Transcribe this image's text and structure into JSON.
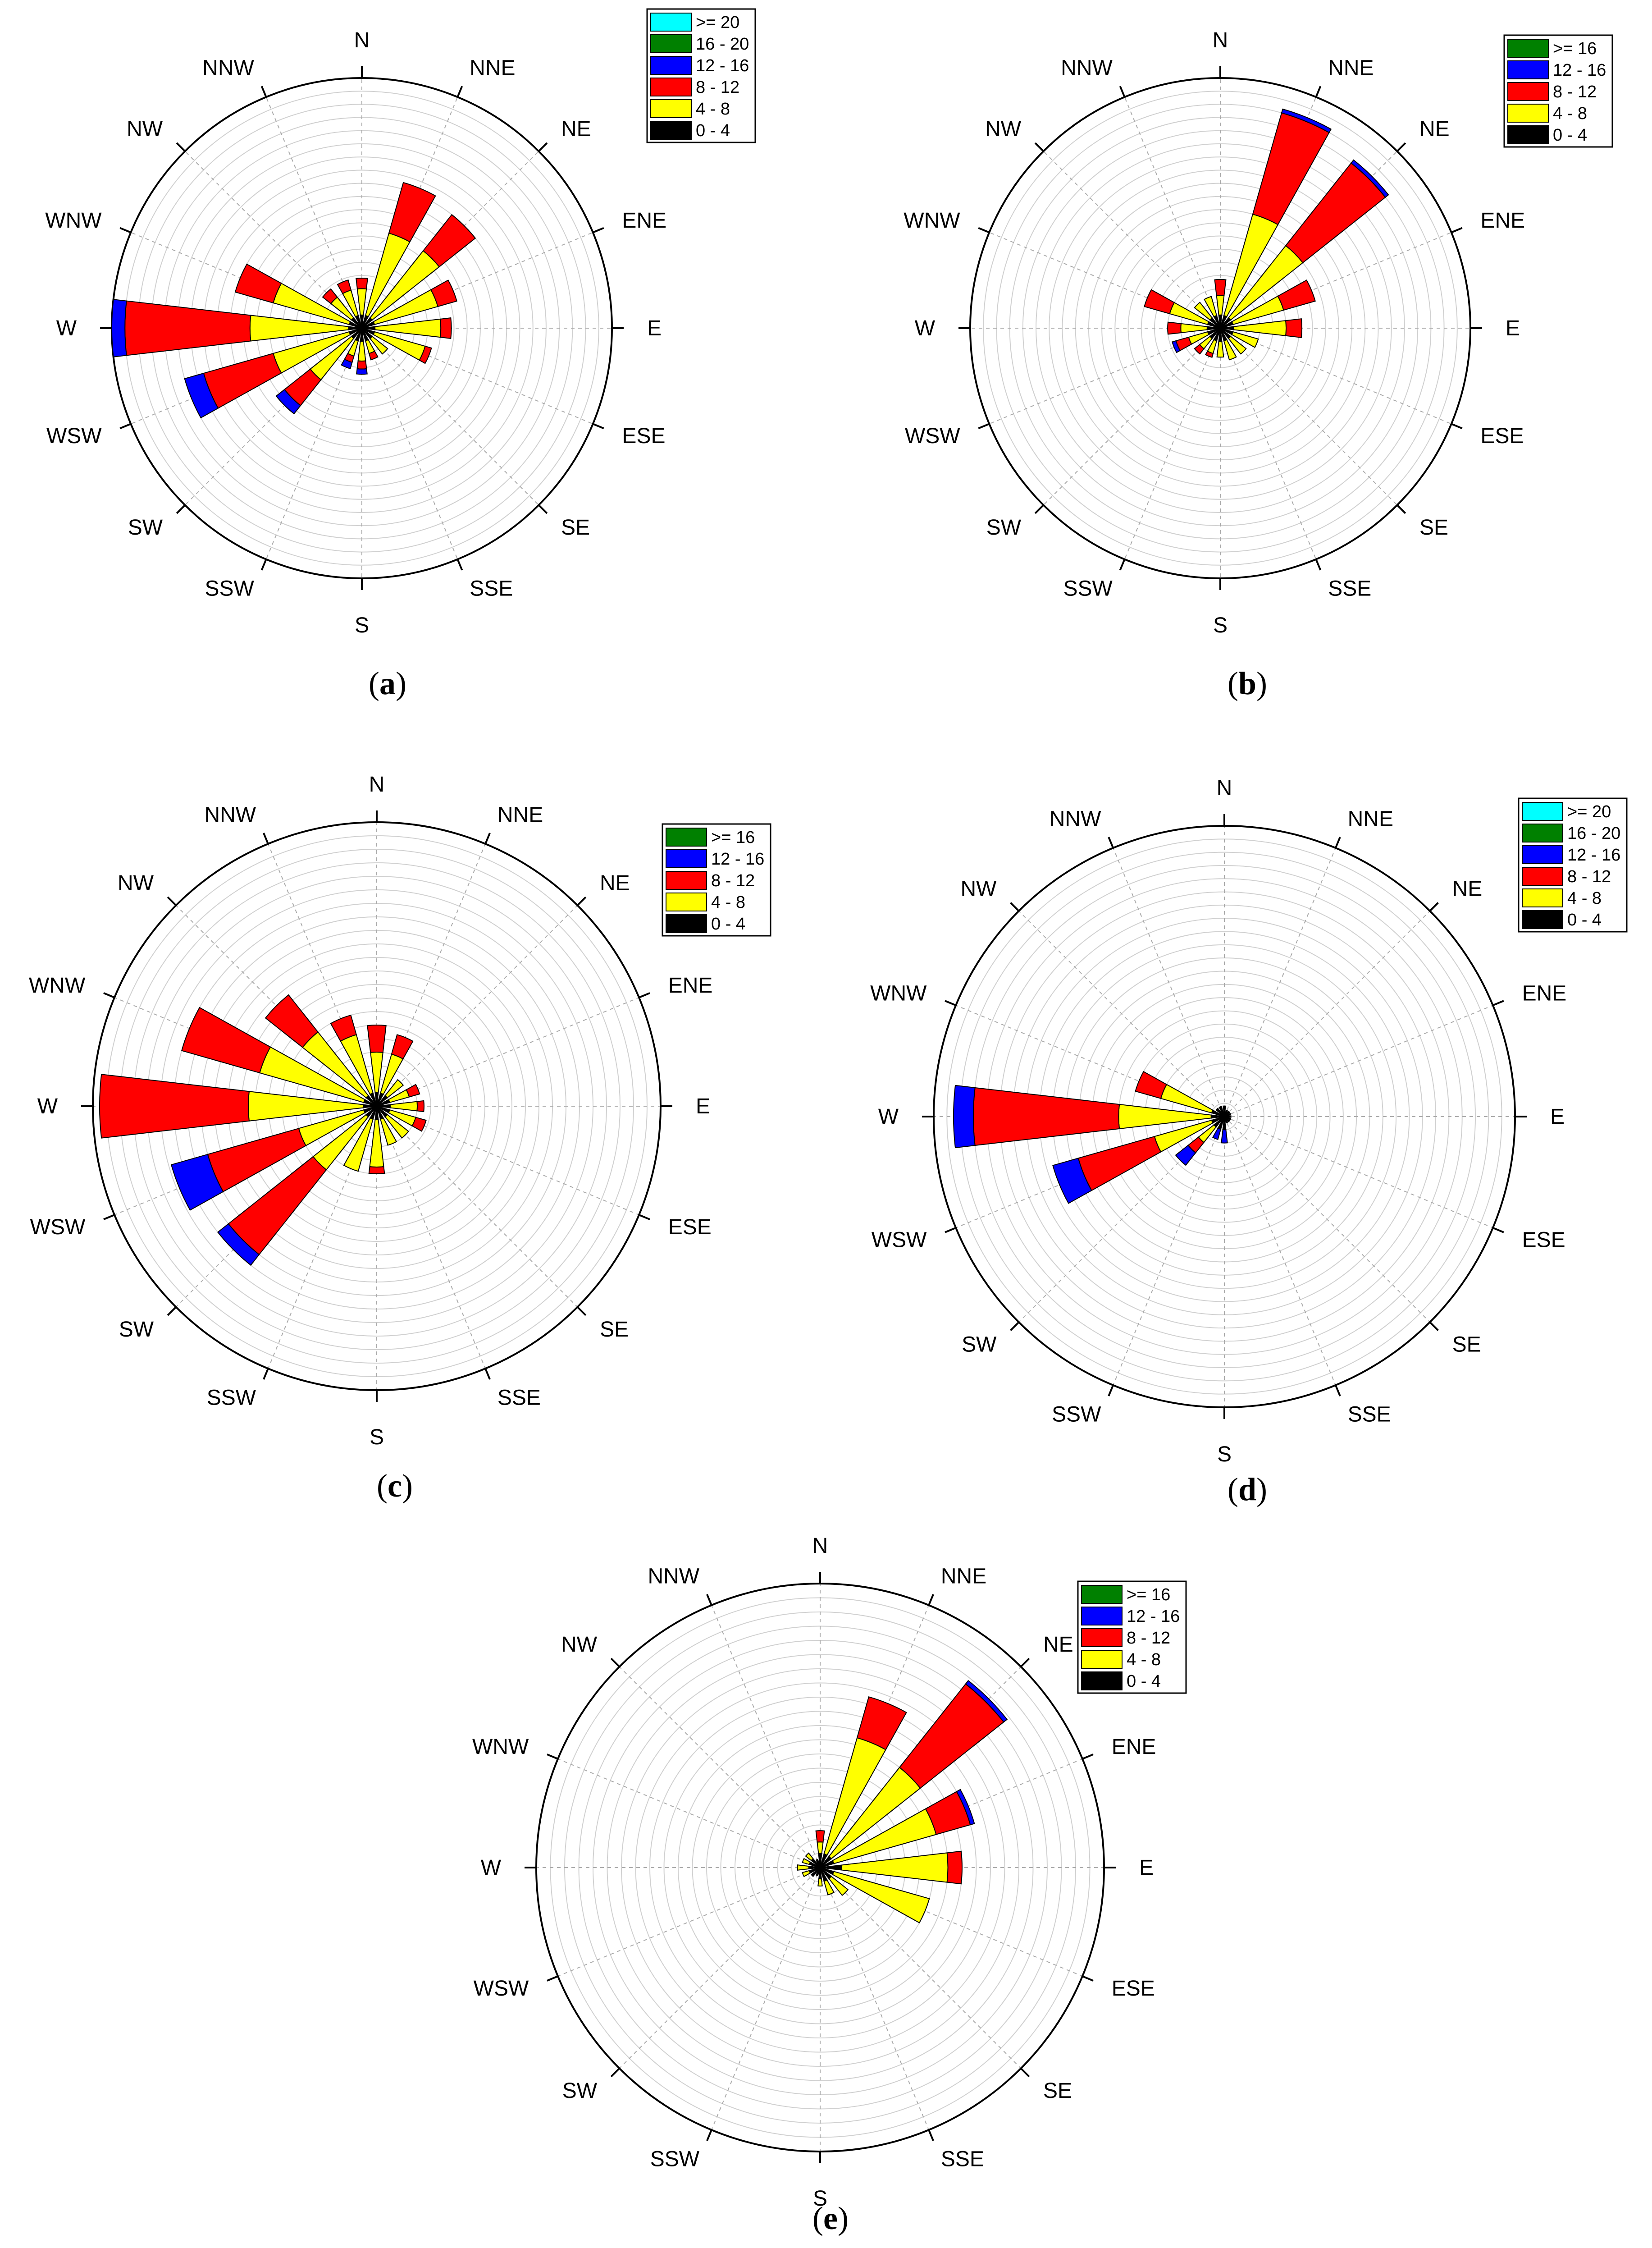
{
  "directions": [
    "N",
    "NNE",
    "NE",
    "ENE",
    "E",
    "ESE",
    "SE",
    "SSE",
    "S",
    "SSW",
    "SW",
    "WSW",
    "W",
    "WNW",
    "NW",
    "NNW"
  ],
  "colors": {
    "0-4": "#000000",
    "4-8": "#ffff00",
    "8-12": "#ff0000",
    "12-16": "#0000ff",
    "16-20": "#008000",
    ">=20": "#00ffff",
    "16+": "#008000"
  },
  "chart_data": [
    {
      "type": "wind-rose",
      "caption": "a",
      "bins": [
        "0 - 4",
        "4 - 8",
        "8 - 12",
        "12 - 16",
        "16 - 20",
        ">= 20"
      ],
      "bin_keys": [
        "0-4",
        "4-8",
        "8-12",
        "12-16",
        "16-20",
        ">=20"
      ],
      "legend_order": [
        ">= 20",
        "16 - 20",
        "12 - 16",
        "8 - 12",
        "4 - 8",
        "0 - 4"
      ],
      "legend_keys": [
        ">=20",
        "16-20",
        "12-16",
        "8-12",
        "4-8",
        "0-4"
      ],
      "rmax": 19,
      "rings": 19,
      "spokes": [
        {
          "dir": 0,
          "values": [
            1,
            2,
            0.8,
            0,
            0,
            0
          ]
        },
        {
          "dir": 1,
          "values": [
            1,
            6.5,
            4,
            0,
            0,
            0
          ]
        },
        {
          "dir": 2,
          "values": [
            1,
            6.5,
            3.5,
            0,
            0,
            0
          ]
        },
        {
          "dir": 3,
          "values": [
            1,
            5,
            1.5,
            0,
            0,
            0
          ]
        },
        {
          "dir": 4,
          "values": [
            1,
            5,
            0.8,
            0,
            0,
            0
          ]
        },
        {
          "dir": 5,
          "values": [
            1,
            4,
            0.5,
            0,
            0,
            0
          ]
        },
        {
          "dir": 6,
          "values": [
            1,
            1.5,
            0,
            0,
            0,
            0
          ]
        },
        {
          "dir": 7,
          "values": [
            1,
            1,
            0.5,
            0,
            0,
            0
          ]
        },
        {
          "dir": 8,
          "values": [
            1,
            1.5,
            0.6,
            0.4,
            0,
            0
          ]
        },
        {
          "dir": 9,
          "values": [
            1,
            1.2,
            0.5,
            0.5,
            0,
            0
          ]
        },
        {
          "dir": 10,
          "values": [
            1,
            4,
            2.5,
            0.8,
            0,
            0
          ]
        },
        {
          "dir": 11,
          "values": [
            1,
            6,
            5.5,
            1.5,
            0,
            0
          ]
        },
        {
          "dir": 12,
          "values": [
            1,
            7.5,
            9.5,
            1,
            0,
            0
          ]
        },
        {
          "dir": 13,
          "values": [
            1,
            6,
            3,
            0,
            0,
            0
          ]
        },
        {
          "dir": 14,
          "values": [
            1,
            2,
            0.8,
            0,
            0,
            0
          ]
        },
        {
          "dir": 15,
          "values": [
            1,
            2,
            0.8,
            0,
            0,
            0
          ]
        }
      ]
    },
    {
      "type": "wind-rose",
      "caption": "b",
      "bins": [
        "0 - 4",
        "4 - 8",
        "8 - 12",
        "12 - 16",
        ">= 16"
      ],
      "bin_keys": [
        "0-4",
        "4-8",
        "8-12",
        "12-16",
        "16+"
      ],
      "legend_order": [
        ">= 16",
        "12 - 16",
        "8 - 12",
        "4 - 8",
        "0 - 4"
      ],
      "legend_keys": [
        "16+",
        "12-16",
        "8-12",
        "4-8",
        "0-4"
      ],
      "rmax": 19,
      "rings": 19,
      "spokes": [
        {
          "dir": 0,
          "values": [
            1,
            1.5,
            1.2,
            0,
            0
          ]
        },
        {
          "dir": 1,
          "values": [
            1,
            8,
            8,
            0.3,
            0
          ]
        },
        {
          "dir": 2,
          "values": [
            1,
            7,
            8,
            0.3,
            0
          ]
        },
        {
          "dir": 3,
          "values": [
            1,
            4,
            2.5,
            0,
            0
          ]
        },
        {
          "dir": 4,
          "values": [
            1,
            4,
            1.2,
            0,
            0
          ]
        },
        {
          "dir": 5,
          "values": [
            1,
            2,
            0,
            0,
            0
          ]
        },
        {
          "dir": 6,
          "values": [
            1,
            1.5,
            0,
            0,
            0
          ]
        },
        {
          "dir": 7,
          "values": [
            1,
            1.5,
            0,
            0,
            0
          ]
        },
        {
          "dir": 8,
          "values": [
            1,
            1.2,
            0,
            0,
            0
          ]
        },
        {
          "dir": 9,
          "values": [
            1,
            1,
            0.3,
            0,
            0
          ]
        },
        {
          "dir": 10,
          "values": [
            1,
            1,
            0.5,
            0,
            0
          ]
        },
        {
          "dir": 11,
          "values": [
            1,
            1.5,
            1,
            0.3,
            0
          ]
        },
        {
          "dir": 12,
          "values": [
            1,
            2,
            1,
            0,
            0
          ]
        },
        {
          "dir": 13,
          "values": [
            1,
            3,
            2,
            0,
            0
          ]
        },
        {
          "dir": 14,
          "values": [
            1,
            1.5,
            0,
            0,
            0
          ]
        },
        {
          "dir": 15,
          "values": [
            1,
            1.5,
            0,
            0,
            0
          ]
        }
      ]
    },
    {
      "type": "wind-rose",
      "caption": "c",
      "bins": [
        "0 - 4",
        "4 - 8",
        "8 - 12",
        "12 - 16",
        ">= 16"
      ],
      "bin_keys": [
        "0-4",
        "4-8",
        "8-12",
        "12-16",
        "16+"
      ],
      "legend_order": [
        ">= 16",
        "12 - 16",
        "8 - 12",
        "4 - 8",
        "0 - 4"
      ],
      "legend_keys": [
        "16+",
        "12-16",
        "8-12",
        "4-8",
        "0-4"
      ],
      "rmax": 21,
      "rings": 21,
      "spokes": [
        {
          "dir": 0,
          "values": [
            1,
            3,
            2,
            0,
            0
          ]
        },
        {
          "dir": 1,
          "values": [
            1,
            3,
            1.5,
            0,
            0
          ]
        },
        {
          "dir": 2,
          "values": [
            1,
            1.5,
            0,
            0,
            0
          ]
        },
        {
          "dir": 3,
          "values": [
            1,
            1.5,
            0.8,
            0,
            0
          ]
        },
        {
          "dir": 4,
          "values": [
            1,
            2,
            0.5,
            0,
            0
          ]
        },
        {
          "dir": 5,
          "values": [
            1,
            2,
            0.8,
            0,
            0
          ]
        },
        {
          "dir": 6,
          "values": [
            1,
            2,
            0,
            0,
            0
          ]
        },
        {
          "dir": 7,
          "values": [
            1,
            2,
            0,
            0,
            0
          ]
        },
        {
          "dir": 8,
          "values": [
            1,
            3.5,
            0.5,
            0,
            0
          ]
        },
        {
          "dir": 9,
          "values": [
            1,
            4,
            0,
            0,
            0
          ]
        },
        {
          "dir": 10,
          "values": [
            1,
            5,
            8,
            1,
            0
          ]
        },
        {
          "dir": 11,
          "values": [
            1,
            5,
            7,
            2.8,
            0
          ]
        },
        {
          "dir": 12,
          "values": [
            1,
            8.5,
            11,
            0,
            0
          ]
        },
        {
          "dir": 13,
          "values": [
            1,
            8,
            6,
            0,
            0
          ]
        },
        {
          "dir": 14,
          "values": [
            1,
            6,
            3.5,
            0,
            0
          ]
        },
        {
          "dir": 15,
          "values": [
            1,
            4.5,
            1.5,
            0,
            0
          ]
        }
      ]
    },
    {
      "type": "wind-rose",
      "caption": "d",
      "bins": [
        "0 - 4",
        "4 - 8",
        "8 - 12",
        "12 - 16",
        "16 - 20",
        ">= 20"
      ],
      "bin_keys": [
        "0-4",
        "4-8",
        "8-12",
        "12-16",
        "16-20",
        ">=20"
      ],
      "legend_order": [
        ">= 20",
        "16 - 20",
        "12 - 16",
        "8 - 12",
        "4 - 8",
        "0 - 4"
      ],
      "legend_keys": [
        ">=20",
        "16-20",
        "12-16",
        "8-12",
        "4-8",
        "0-4"
      ],
      "rmax": 22,
      "rings": 22,
      "spokes": [
        {
          "dir": 0,
          "values": [
            0.8,
            0,
            0,
            0,
            0,
            0
          ]
        },
        {
          "dir": 1,
          "values": [
            0.5,
            0,
            0,
            0,
            0,
            0
          ]
        },
        {
          "dir": 2,
          "values": [
            0.5,
            0,
            0,
            0,
            0,
            0
          ]
        },
        {
          "dir": 3,
          "values": [
            0.5,
            0,
            0,
            0,
            0,
            0
          ]
        },
        {
          "dir": 4,
          "values": [
            0.5,
            0,
            0,
            0,
            0,
            0
          ]
        },
        {
          "dir": 5,
          "values": [
            0.5,
            0,
            0,
            0,
            0,
            0
          ]
        },
        {
          "dir": 6,
          "values": [
            0.5,
            0,
            0,
            0,
            0,
            0
          ]
        },
        {
          "dir": 7,
          "values": [
            0.5,
            0,
            0,
            0,
            0,
            0
          ]
        },
        {
          "dir": 8,
          "values": [
            1,
            0,
            0,
            1,
            0,
            0
          ]
        },
        {
          "dir": 9,
          "values": [
            1,
            0,
            0,
            0.8,
            0,
            0
          ]
        },
        {
          "dir": 10,
          "values": [
            1,
            1.5,
            1,
            1.2,
            0,
            0
          ]
        },
        {
          "dir": 11,
          "values": [
            1,
            4.5,
            6,
            2,
            0,
            0
          ]
        },
        {
          "dir": 12,
          "values": [
            1,
            7,
            11,
            1.5,
            0,
            0
          ]
        },
        {
          "dir": 13,
          "values": [
            1,
            4,
            2,
            0,
            0,
            0
          ]
        },
        {
          "dir": 14,
          "values": [
            0.8,
            0,
            0,
            0,
            0,
            0
          ]
        },
        {
          "dir": 15,
          "values": [
            0.8,
            0,
            0,
            0,
            0,
            0
          ]
        }
      ]
    },
    {
      "type": "wind-rose",
      "caption": "e",
      "bins": [
        "0 - 4",
        "4 - 8",
        "8 - 12",
        "12 - 16",
        ">= 16"
      ],
      "bin_keys": [
        "0-4",
        "4-8",
        "8-12",
        "12-16",
        "16+"
      ],
      "legend_order": [
        ">= 16",
        "12 - 16",
        "8 - 12",
        "4 - 8",
        "0 - 4"
      ],
      "legend_keys": [
        "16+",
        "12-16",
        "8-12",
        "4-8",
        "0-4"
      ],
      "rmax": 20,
      "rings": 20,
      "spokes": [
        {
          "dir": 0,
          "values": [
            1,
            0.8,
            0.8,
            0,
            0
          ]
        },
        {
          "dir": 1,
          "values": [
            1,
            8.5,
            3,
            0,
            0
          ]
        },
        {
          "dir": 2,
          "values": [
            1,
            8,
            7.5,
            0.3,
            0
          ]
        },
        {
          "dir": 3,
          "values": [
            1,
            7.5,
            2.5,
            0.3,
            0
          ]
        },
        {
          "dir": 4,
          "values": [
            1.5,
            7.5,
            1,
            0,
            0
          ]
        },
        {
          "dir": 5,
          "values": [
            1,
            7,
            0,
            0,
            0
          ]
        },
        {
          "dir": 6,
          "values": [
            1,
            1.5,
            0,
            0,
            0
          ]
        },
        {
          "dir": 7,
          "values": [
            1,
            1,
            0,
            0,
            0
          ]
        },
        {
          "dir": 8,
          "values": [
            0.8,
            0.5,
            0,
            0,
            0
          ]
        },
        {
          "dir": 9,
          "values": [
            0.6,
            0,
            0,
            0,
            0
          ]
        },
        {
          "dir": 10,
          "values": [
            0.8,
            0,
            0,
            0,
            0
          ]
        },
        {
          "dir": 11,
          "values": [
            0.8,
            0.5,
            0,
            0,
            0
          ]
        },
        {
          "dir": 12,
          "values": [
            0.8,
            0.8,
            0,
            0,
            0
          ]
        },
        {
          "dir": 13,
          "values": [
            0.8,
            0.5,
            0,
            0,
            0
          ]
        },
        {
          "dir": 14,
          "values": [
            0.8,
            0.5,
            0,
            0,
            0
          ]
        },
        {
          "dir": 15,
          "values": [
            0.6,
            0,
            0,
            0,
            0
          ]
        }
      ]
    }
  ]
}
